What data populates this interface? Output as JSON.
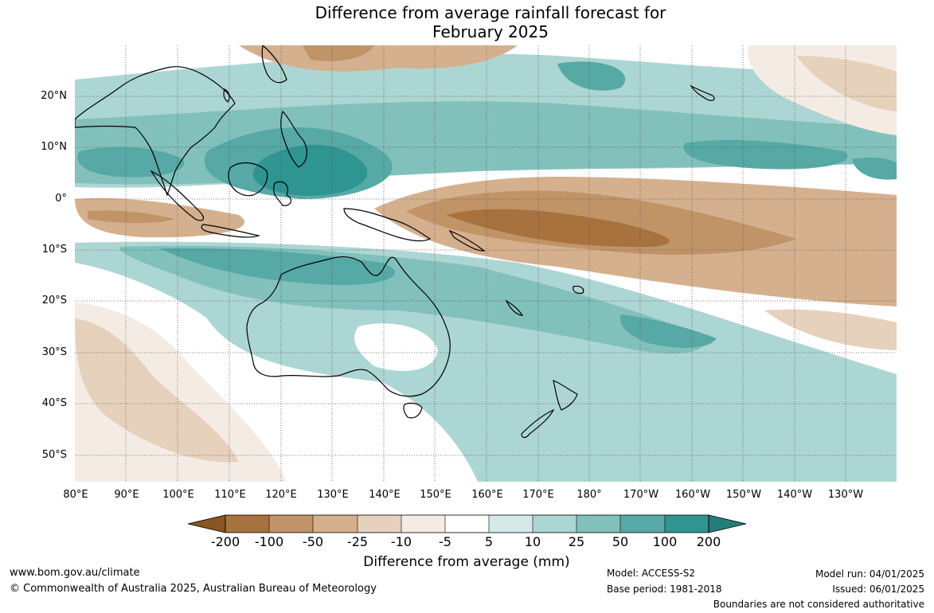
{
  "title": {
    "line1": "Difference from average rainfall forecast for",
    "line2": "February 2025"
  },
  "map": {
    "lat_labels": [
      "20°N",
      "10°N",
      "0°",
      "10°S",
      "20°S",
      "30°S",
      "40°S",
      "50°S"
    ],
    "lon_labels": [
      "80°E",
      "90°E",
      "100°E",
      "110°E",
      "120°E",
      "130°E",
      "140°E",
      "150°E",
      "160°E",
      "170°E",
      "180°",
      "170°W",
      "160°W",
      "150°W",
      "140°W",
      "130°W"
    ]
  },
  "legend": {
    "title": "Difference from average (mm)",
    "labels": [
      "-200",
      "-100",
      "-50",
      "-25",
      "-10",
      "-5",
      "5",
      "10",
      "25",
      "50",
      "100",
      "200"
    ],
    "colors": [
      "#8a5522",
      "#a8723e",
      "#c19468",
      "#d5b08e",
      "#e6d1bc",
      "#f4ece4",
      "#ffffff",
      "#d5eae8",
      "#acd6d3",
      "#82c0bc",
      "#56a9a5",
      "#2f9591",
      "#257d79"
    ]
  },
  "footer": {
    "url": "www.bom.gov.au/climate",
    "copyright": "© Commonwealth of Australia 2025, Australian Bureau of Meteorology",
    "model": "Model: ACCESS-S2",
    "base_period": "Base period: 1981-2018",
    "model_run": "Model run: 04/01/2025",
    "issued": "Issued: 06/01/2025",
    "boundaries": "Boundaries are not considered authoritative"
  }
}
